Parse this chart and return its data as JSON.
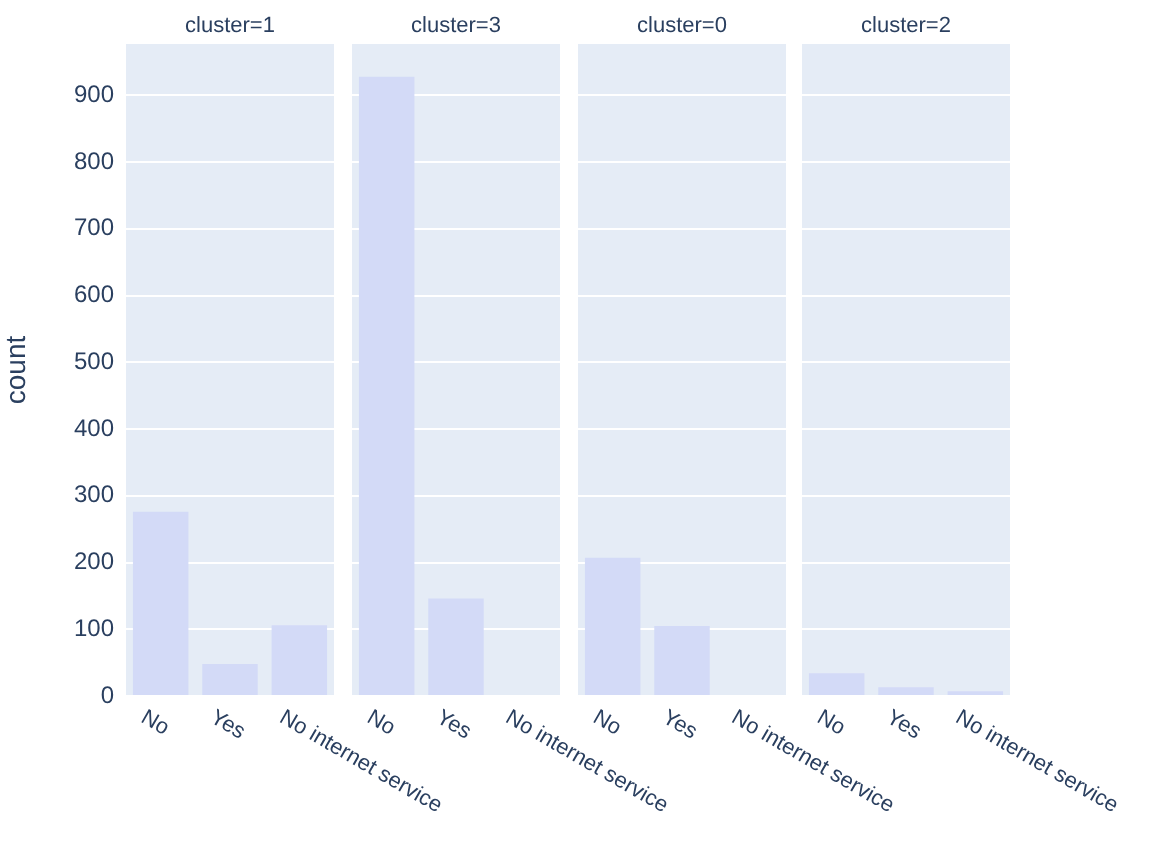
{
  "chart_data": [
    {
      "type": "bar",
      "title": "cluster=1",
      "ylabel": "count",
      "categories": [
        "No",
        "Yes",
        "No internet service"
      ],
      "values": [
        276,
        48,
        106
      ],
      "color": "#d3daf7",
      "ylim": [
        0,
        977
      ],
      "yticks": [
        0,
        100,
        200,
        300,
        400,
        500,
        600,
        700,
        800,
        900
      ],
      "grid": "y"
    },
    {
      "type": "bar",
      "title": "cluster=3",
      "categories": [
        "No",
        "Yes",
        "No internet service"
      ],
      "values": [
        928,
        146,
        0
      ],
      "color": "#d3daf7",
      "ylim": [
        0,
        977
      ],
      "yticks": [
        0,
        100,
        200,
        300,
        400,
        500,
        600,
        700,
        800,
        900
      ],
      "grid": "y",
      "tick_labels": "x"
    },
    {
      "type": "bar",
      "title": "cluster=0",
      "categories": [
        "No",
        "Yes",
        "No internet service"
      ],
      "values": [
        207,
        105,
        0
      ],
      "color": "#d3daf7",
      "ylim": [
        0,
        977
      ],
      "yticks": [
        0,
        100,
        200,
        300,
        400,
        500,
        600,
        700,
        800,
        900
      ],
      "grid": "y",
      "tick_labels": "x"
    },
    {
      "type": "bar",
      "title": "cluster=2",
      "categories": [
        "No",
        "Yes",
        "No internet service"
      ],
      "values": [
        34,
        13,
        7
      ],
      "color": "#d3daf7",
      "ylim": [
        0,
        977
      ],
      "yticks": [
        0,
        100,
        200,
        300,
        400,
        500,
        600,
        700,
        800,
        900
      ],
      "grid": "y",
      "tick_labels": "x"
    }
  ]
}
